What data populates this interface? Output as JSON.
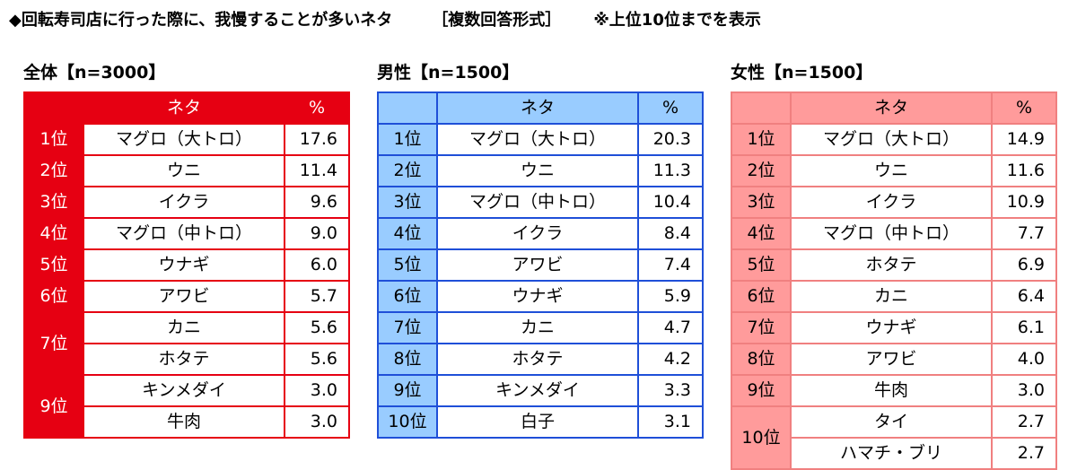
{
  "title": {
    "main": "◆回転寿司店に行った際に、我慢することが多いネタ",
    "format": "［複数回答形式］",
    "note": "※上位10位までを表示"
  },
  "total": {
    "heading": "全体【n=3000】",
    "col_item": "ネタ",
    "col_pct": "%",
    "rows": [
      {
        "rank": "1位",
        "item": "マグロ（大トロ）",
        "pct": "17.6"
      },
      {
        "rank": "2位",
        "item": "ウニ",
        "pct": "11.4"
      },
      {
        "rank": "3位",
        "item": "イクラ",
        "pct": "9.6"
      },
      {
        "rank": "4位",
        "item": "マグロ（中トロ）",
        "pct": "9.0"
      },
      {
        "rank": "5位",
        "item": "ウナギ",
        "pct": "6.0"
      },
      {
        "rank": "6位",
        "item": "アワビ",
        "pct": "5.7"
      },
      {
        "rank": "7位",
        "item": "カニ",
        "pct": "5.6"
      },
      {
        "rank": "",
        "item": "ホタテ",
        "pct": "5.6"
      },
      {
        "rank": "9位",
        "item": "キンメダイ",
        "pct": "3.0"
      },
      {
        "rank": "",
        "item": "牛肉",
        "pct": "3.0"
      }
    ]
  },
  "male": {
    "heading": "男性【n=1500】",
    "col_item": "ネタ",
    "col_pct": "%",
    "rows": [
      {
        "rank": "1位",
        "item": "マグロ（大トロ）",
        "pct": "20.3"
      },
      {
        "rank": "2位",
        "item": "ウニ",
        "pct": "11.3"
      },
      {
        "rank": "3位",
        "item": "マグロ（中トロ）",
        "pct": "10.4"
      },
      {
        "rank": "4位",
        "item": "イクラ",
        "pct": "8.4"
      },
      {
        "rank": "5位",
        "item": "アワビ",
        "pct": "7.4"
      },
      {
        "rank": "6位",
        "item": "ウナギ",
        "pct": "5.9"
      },
      {
        "rank": "7位",
        "item": "カニ",
        "pct": "4.7"
      },
      {
        "rank": "8位",
        "item": "ホタテ",
        "pct": "4.2"
      },
      {
        "rank": "9位",
        "item": "キンメダイ",
        "pct": "3.3"
      },
      {
        "rank": "10位",
        "item": "白子",
        "pct": "3.1"
      }
    ]
  },
  "female": {
    "heading": "女性【n=1500】",
    "col_item": "ネタ",
    "col_pct": "%",
    "rows": [
      {
        "rank": "1位",
        "item": "マグロ（大トロ）",
        "pct": "14.9"
      },
      {
        "rank": "2位",
        "item": "ウニ",
        "pct": "11.6"
      },
      {
        "rank": "3位",
        "item": "イクラ",
        "pct": "10.9"
      },
      {
        "rank": "4位",
        "item": "マグロ（中トロ）",
        "pct": "7.7"
      },
      {
        "rank": "5位",
        "item": "ホタテ",
        "pct": "6.9"
      },
      {
        "rank": "6位",
        "item": "カニ",
        "pct": "6.4"
      },
      {
        "rank": "7位",
        "item": "ウナギ",
        "pct": "6.1"
      },
      {
        "rank": "8位",
        "item": "アワビ",
        "pct": "4.0"
      },
      {
        "rank": "9位",
        "item": "牛肉",
        "pct": "3.0"
      },
      {
        "rank": "10位",
        "item": "タイ",
        "pct": "2.7"
      },
      {
        "rank": "",
        "item": "ハマチ・ブリ",
        "pct": "2.7"
      }
    ]
  },
  "colors": {
    "total_accent": "#e60012",
    "male_fill": "#99ccff",
    "male_border": "#1f4fd8",
    "female_fill": "#ff9b9b",
    "female_border": "#f08080"
  }
}
